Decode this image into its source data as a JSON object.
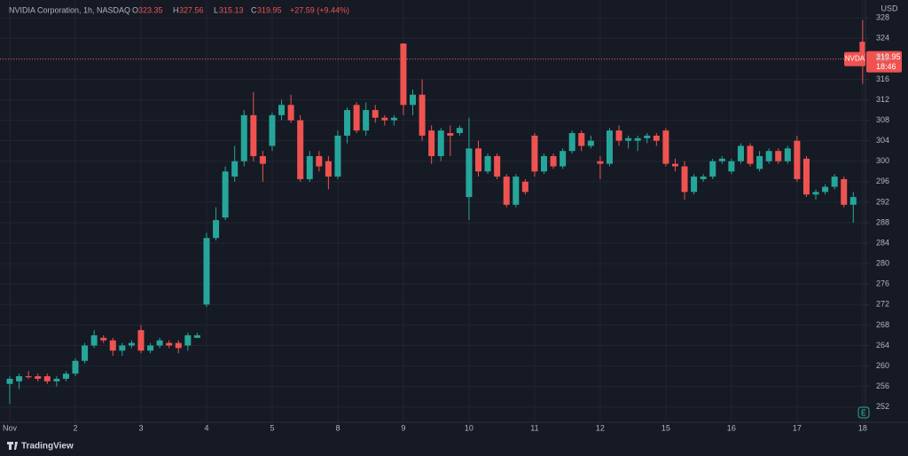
{
  "header": {
    "symbol": "NVIDIA Corporation, 1h, NASDAQ",
    "o": "O",
    "h": "H",
    "l": "L",
    "c": "C",
    "change": "+27.59 (+9.44%)",
    "currency": "USD",
    "ticker": "NVDA",
    "countdown": "18:46",
    "brand": "TradingView"
  },
  "chart_data": {
    "type": "candlestick",
    "up_color": "#26a69a",
    "down_color": "#ef5350",
    "ylim": [
      249,
      331.5
    ],
    "yticks": [
      252,
      256,
      260,
      264,
      268,
      272,
      276,
      280,
      284,
      288,
      292,
      296,
      300,
      304,
      308,
      312,
      316,
      320,
      324,
      328
    ],
    "xticks": [
      {
        "value": 0,
        "label": "Nov"
      },
      {
        "value": 7,
        "label": "2"
      },
      {
        "value": 14,
        "label": "3"
      },
      {
        "value": 21,
        "label": "4"
      },
      {
        "value": 28,
        "label": "5"
      },
      {
        "value": 35,
        "label": "8"
      },
      {
        "value": 42,
        "label": "9"
      },
      {
        "value": 49,
        "label": "10"
      },
      {
        "value": 56,
        "label": "11"
      },
      {
        "value": 63,
        "label": "12"
      },
      {
        "value": 70,
        "label": "15"
      },
      {
        "value": 77,
        "label": "16"
      },
      {
        "value": 84,
        "label": "17"
      },
      {
        "value": 91,
        "label": "18"
      }
    ],
    "grid": true,
    "open": [
      256.5,
      257,
      258,
      258,
      258,
      257,
      257.5,
      258.5,
      261,
      264,
      265.5,
      265,
      263,
      264,
      267,
      263,
      264,
      264.5,
      264.5,
      264,
      265.5,
      272,
      285,
      289,
      297,
      300,
      309,
      301,
      303,
      309,
      311,
      308,
      296.5,
      301,
      300,
      297,
      305,
      311,
      306,
      310,
      308.5,
      308,
      323,
      311,
      313,
      306,
      301,
      305.5,
      305.5,
      293,
      302.5,
      298,
      301,
      297,
      291.5,
      296,
      305,
      298,
      301,
      299,
      302,
      305.5,
      303,
      300,
      299.5,
      306,
      304,
      304,
      304.5,
      305,
      306,
      299.5,
      299,
      294,
      296.5,
      297,
      300,
      298,
      300,
      303,
      298.5,
      300,
      302,
      300,
      304,
      300.5,
      293.5,
      294,
      295,
      296.5,
      291.5,
      323.35
    ],
    "high": [
      258,
      258.5,
      259,
      258.5,
      258.5,
      258,
      259,
      261.5,
      264.5,
      267,
      266,
      265.5,
      264.5,
      265,
      268,
      264.5,
      265.5,
      265,
      265,
      266.5,
      266.5,
      286,
      291,
      299,
      303,
      310,
      313.5,
      302,
      309.5,
      312,
      313,
      309,
      302,
      302,
      301,
      306,
      310.5,
      311.5,
      311.5,
      311,
      309,
      309,
      323,
      314,
      316,
      307,
      306.5,
      307,
      307,
      308.5,
      304,
      301.5,
      301.5,
      297.5,
      297.5,
      296.5,
      305.5,
      301.5,
      301.5,
      302.5,
      306,
      306,
      305,
      301,
      306.5,
      307,
      305,
      305,
      305.5,
      305.5,
      306.5,
      300.5,
      300,
      297.5,
      297.5,
      300.5,
      301,
      300.5,
      303.5,
      303.5,
      302,
      302.5,
      302.5,
      303,
      305,
      301,
      294.5,
      295.5,
      297.5,
      297,
      294,
      327.56
    ],
    "low": [
      252.6,
      255.5,
      257.5,
      257,
      256.5,
      256,
      257,
      258,
      260.5,
      263.5,
      264.5,
      262,
      262,
      263.5,
      262.5,
      262.5,
      263.5,
      263.5,
      262.5,
      263,
      265.5,
      271.5,
      284.5,
      288.5,
      296,
      299,
      300,
      296,
      302,
      308,
      307.5,
      296,
      296,
      298,
      294.5,
      296.5,
      303.5,
      305.5,
      305,
      307.5,
      307,
      307,
      309,
      309,
      304,
      299.5,
      300,
      301,
      305,
      288.5,
      297,
      297.5,
      296.5,
      291,
      291,
      293.5,
      297,
      297.5,
      298.5,
      298.5,
      301.5,
      302,
      302.5,
      296.5,
      299,
      303,
      302.5,
      302,
      303.5,
      303,
      299,
      298,
      292.5,
      293.5,
      296,
      296.5,
      299.5,
      297.5,
      299.5,
      299,
      298,
      299.5,
      299.5,
      299.5,
      296,
      293,
      292.5,
      293.5,
      294.5,
      291,
      288,
      315.13
    ],
    "close": [
      257.5,
      258,
      257.8,
      257.5,
      257,
      257.5,
      258.5,
      261,
      264,
      266,
      265,
      263,
      264,
      264.5,
      263,
      264,
      265,
      264,
      263.5,
      266,
      266,
      285,
      288.5,
      298,
      300,
      309,
      301,
      299.5,
      309,
      311,
      308,
      296.5,
      301,
      299,
      297,
      305,
      310,
      306,
      310,
      308.5,
      308,
      308.5,
      311,
      313,
      305,
      301,
      306,
      305,
      306.5,
      302.5,
      298,
      301,
      297,
      291.5,
      297,
      294,
      298,
      301,
      299,
      302,
      305.5,
      303,
      304,
      299.5,
      306,
      304,
      304.5,
      304.5,
      305,
      304,
      299.5,
      299,
      294,
      297,
      297,
      300,
      300.5,
      300,
      303,
      299.5,
      301,
      302,
      300,
      302.5,
      296.5,
      293.5,
      294,
      295,
      297,
      291.5,
      293,
      319.95
    ]
  }
}
